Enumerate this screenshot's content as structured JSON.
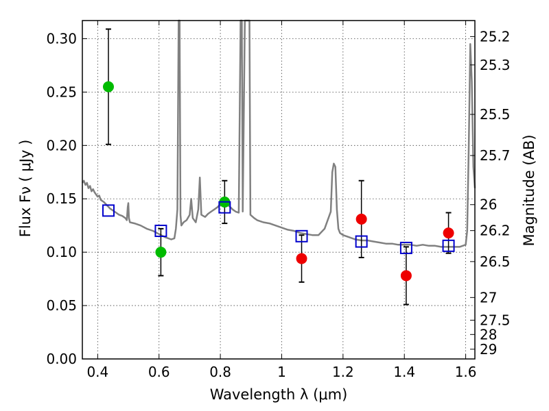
{
  "chart_data": {
    "type": "scatter",
    "xlabel": "Wavelength  λ (μm)",
    "ylabel": "Flux  Fν  ( μJy )",
    "y2label": "Magnitude (AB)",
    "xlim": [
      0.35,
      1.63
    ],
    "ylim": [
      0.0,
      0.317
    ],
    "x_ticks": [
      "0.4",
      "0.6",
      "0.8",
      "1",
      "1.2",
      "1.4",
      "1.6"
    ],
    "y_ticks": [
      "0.00",
      "0.05",
      "0.10",
      "0.15",
      "0.20",
      "0.25",
      "0.30"
    ],
    "right_ticks": [
      {
        "label": "25.2",
        "mag": 25.2
      },
      {
        "label": "25.3",
        "mag": 25.3
      },
      {
        "label": "25.5",
        "mag": 25.5
      },
      {
        "label": "25.7",
        "mag": 25.7
      },
      {
        "label": "26",
        "mag": 26.0
      },
      {
        "label": "26.2",
        "mag": 26.2
      },
      {
        "label": "26.5",
        "mag": 26.5
      },
      {
        "label": "27",
        "mag": 27.0
      },
      {
        "label": "27.5",
        "mag": 27.5
      },
      {
        "label": "28",
        "mag": 28.0
      },
      {
        "label": "29",
        "mag": 29.0
      }
    ],
    "grid": true,
    "colors": {
      "green": "#00bb00",
      "red": "#ee0000",
      "model_box": "#0000cc",
      "spectrum": "#808080"
    },
    "green_points": [
      {
        "x": 0.435,
        "y": 0.255,
        "err": 0.054
      },
      {
        "x": 0.606,
        "y": 0.1,
        "err": 0.022
      },
      {
        "x": 0.814,
        "y": 0.147,
        "err": 0.02
      }
    ],
    "red_points": [
      {
        "x": 1.065,
        "y": 0.094,
        "err": 0.022
      },
      {
        "x": 1.26,
        "y": 0.131,
        "err": 0.036
      },
      {
        "x": 1.406,
        "y": 0.078,
        "err": 0.027
      },
      {
        "x": 1.544,
        "y": 0.118,
        "err": 0.019
      }
    ],
    "model_points": [
      {
        "x": 0.435,
        "y": 0.139
      },
      {
        "x": 0.606,
        "y": 0.12
      },
      {
        "x": 0.814,
        "y": 0.142
      },
      {
        "x": 1.065,
        "y": 0.115
      },
      {
        "x": 1.26,
        "y": 0.11
      },
      {
        "x": 1.406,
        "y": 0.104
      },
      {
        "x": 1.544,
        "y": 0.106
      }
    ],
    "spectrum": [
      [
        0.35,
        0.165
      ],
      [
        0.355,
        0.167
      ],
      [
        0.36,
        0.163
      ],
      [
        0.365,
        0.165
      ],
      [
        0.37,
        0.16
      ],
      [
        0.375,
        0.162
      ],
      [
        0.38,
        0.157
      ],
      [
        0.385,
        0.159
      ],
      [
        0.39,
        0.156
      ],
      [
        0.395,
        0.154
      ],
      [
        0.4,
        0.152
      ],
      [
        0.405,
        0.153
      ],
      [
        0.41,
        0.149
      ],
      [
        0.42,
        0.147
      ],
      [
        0.43,
        0.144
      ],
      [
        0.44,
        0.141
      ],
      [
        0.45,
        0.139
      ],
      [
        0.46,
        0.137
      ],
      [
        0.47,
        0.135
      ],
      [
        0.48,
        0.134
      ],
      [
        0.49,
        0.132
      ],
      [
        0.495,
        0.13
      ],
      [
        0.498,
        0.142
      ],
      [
        0.5,
        0.146
      ],
      [
        0.502,
        0.132
      ],
      [
        0.505,
        0.128
      ],
      [
        0.52,
        0.127
      ],
      [
        0.54,
        0.125
      ],
      [
        0.56,
        0.122
      ],
      [
        0.58,
        0.12
      ],
      [
        0.6,
        0.117
      ],
      [
        0.62,
        0.114
      ],
      [
        0.64,
        0.112
      ],
      [
        0.65,
        0.113
      ],
      [
        0.655,
        0.122
      ],
      [
        0.66,
        0.14
      ],
      [
        0.664,
        0.32
      ],
      [
        0.667,
        0.32
      ],
      [
        0.67,
        0.135
      ],
      [
        0.673,
        0.125
      ],
      [
        0.68,
        0.128
      ],
      [
        0.69,
        0.13
      ],
      [
        0.7,
        0.135
      ],
      [
        0.705,
        0.15
      ],
      [
        0.71,
        0.132
      ],
      [
        0.72,
        0.128
      ],
      [
        0.728,
        0.14
      ],
      [
        0.733,
        0.17
      ],
      [
        0.738,
        0.135
      ],
      [
        0.75,
        0.133
      ],
      [
        0.76,
        0.136
      ],
      [
        0.77,
        0.138
      ],
      [
        0.78,
        0.14
      ],
      [
        0.79,
        0.142
      ],
      [
        0.8,
        0.145
      ],
      [
        0.81,
        0.148
      ],
      [
        0.82,
        0.145
      ],
      [
        0.83,
        0.143
      ],
      [
        0.84,
        0.14
      ],
      [
        0.85,
        0.138
      ],
      [
        0.86,
        0.137
      ],
      [
        0.866,
        0.32
      ],
      [
        0.87,
        0.32
      ],
      [
        0.873,
        0.138
      ],
      [
        0.88,
        0.32
      ],
      [
        0.885,
        0.32
      ],
      [
        0.89,
        0.32
      ],
      [
        0.895,
        0.32
      ],
      [
        0.898,
        0.135
      ],
      [
        0.91,
        0.132
      ],
      [
        0.92,
        0.13
      ],
      [
        0.94,
        0.128
      ],
      [
        0.96,
        0.127
      ],
      [
        0.98,
        0.125
      ],
      [
        1.0,
        0.123
      ],
      [
        1.02,
        0.121
      ],
      [
        1.04,
        0.12
      ],
      [
        1.06,
        0.118
      ],
      [
        1.08,
        0.117
      ],
      [
        1.1,
        0.116
      ],
      [
        1.12,
        0.116
      ],
      [
        1.14,
        0.122
      ],
      [
        1.15,
        0.13
      ],
      [
        1.16,
        0.138
      ],
      [
        1.165,
        0.175
      ],
      [
        1.17,
        0.183
      ],
      [
        1.175,
        0.18
      ],
      [
        1.18,
        0.14
      ],
      [
        1.185,
        0.122
      ],
      [
        1.19,
        0.118
      ],
      [
        1.2,
        0.116
      ],
      [
        1.22,
        0.114
      ],
      [
        1.24,
        0.112
      ],
      [
        1.26,
        0.111
      ],
      [
        1.28,
        0.111
      ],
      [
        1.3,
        0.11
      ],
      [
        1.32,
        0.109
      ],
      [
        1.34,
        0.108
      ],
      [
        1.36,
        0.108
      ],
      [
        1.38,
        0.107
      ],
      [
        1.4,
        0.107
      ],
      [
        1.42,
        0.107
      ],
      [
        1.44,
        0.106
      ],
      [
        1.46,
        0.107
      ],
      [
        1.48,
        0.106
      ],
      [
        1.5,
        0.106
      ],
      [
        1.52,
        0.105
      ],
      [
        1.54,
        0.105
      ],
      [
        1.56,
        0.105
      ],
      [
        1.58,
        0.105
      ],
      [
        1.6,
        0.107
      ],
      [
        1.605,
        0.12
      ],
      [
        1.61,
        0.2
      ],
      [
        1.615,
        0.295
      ],
      [
        1.62,
        0.26
      ],
      [
        1.625,
        0.18
      ],
      [
        1.63,
        0.16
      ]
    ]
  }
}
